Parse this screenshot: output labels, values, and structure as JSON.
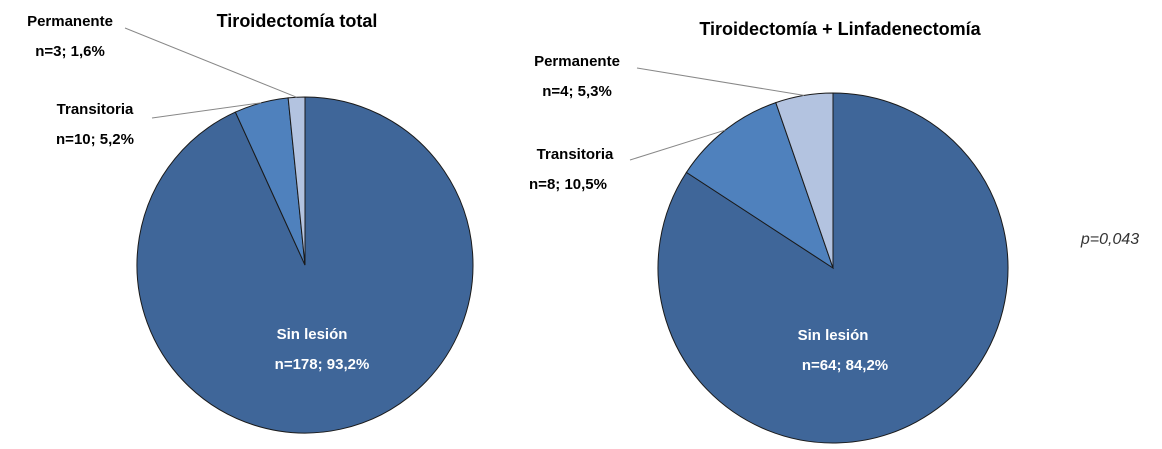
{
  "chart_data": [
    {
      "type": "pie",
      "title": "Tiroidectomía total",
      "categories": [
        "Sin lesión",
        "Transitoria",
        "Permanente"
      ],
      "values": [
        93.2,
        5.2,
        1.6
      ],
      "value_labels": [
        "n=178; 93,2%",
        "n=10; 5,2%",
        "n=3; 1,6%"
      ],
      "colors": [
        "#3f6699",
        "#4f81bd",
        "#b3c3e0"
      ]
    },
    {
      "type": "pie",
      "title": "Tiroidectomía + Linfadenectomía",
      "categories": [
        "Sin lesión",
        "Transitoria",
        "Permanente"
      ],
      "values": [
        84.2,
        10.5,
        5.3
      ],
      "value_labels": [
        "n=64; 84,2%",
        "n=8; 10,5%",
        "n=4; 5,3%"
      ],
      "colors": [
        "#3f6699",
        "#4f81bd",
        "#b3c3e0"
      ]
    }
  ],
  "annotation": "p=0,043"
}
